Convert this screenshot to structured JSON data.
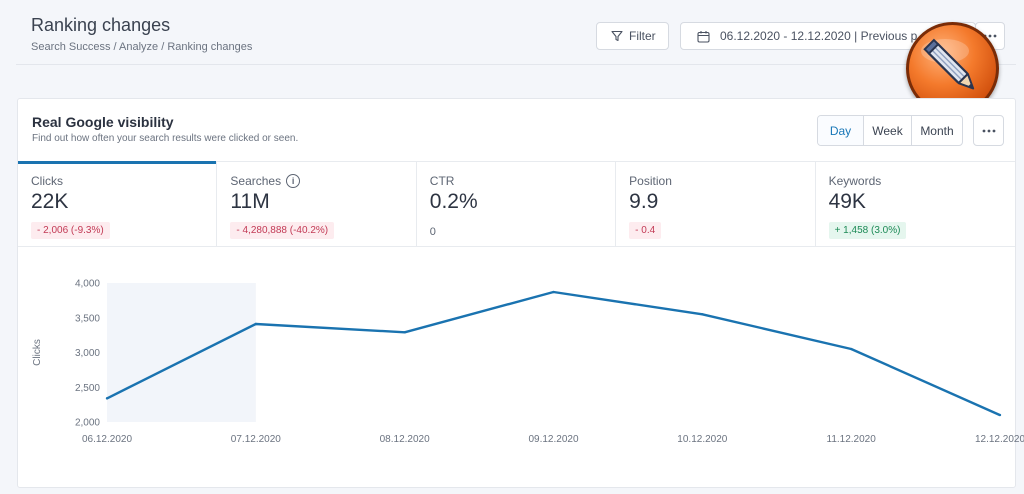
{
  "header": {
    "title": "Ranking changes",
    "breadcrumb": "Search Success / Analyze / Ranking changes",
    "filter_label": "Filter",
    "date_range": "06.12.2020 - 12.12.2020 | Previous p"
  },
  "card": {
    "title": "Real Google visibility",
    "subtitle": "Find out how often your search results were clicked or seen.",
    "periods": [
      "Day",
      "Week",
      "Month"
    ],
    "active_period": "Day"
  },
  "metrics": [
    {
      "label": "Clicks",
      "value": "22K",
      "delta": "- 2,006 (-9.3%)",
      "trend": "negative",
      "active": true
    },
    {
      "label": "Searches",
      "value": "11M",
      "delta": "- 4,280,888 (-40.2%)",
      "trend": "negative",
      "info": true
    },
    {
      "label": "CTR",
      "value": "0.2%",
      "sub": "0"
    },
    {
      "label": "Position",
      "value": "9.9",
      "delta": "- 0.4",
      "trend": "negative"
    },
    {
      "label": "Keywords",
      "value": "49K",
      "delta": "+ 1,458 (3.0%)",
      "trend": "positive"
    }
  ],
  "colors": {
    "accent": "#1a73b0",
    "negative": "#c23a55",
    "positive": "#1d8a56",
    "highlight_band": "#f2f5fa"
  },
  "chart_data": {
    "type": "line",
    "ylabel": "Clicks",
    "x": [
      "06.12.2020",
      "07.12.2020",
      "08.12.2020",
      "09.12.2020",
      "10.12.2020",
      "11.12.2020",
      "12.12.2020"
    ],
    "series": [
      {
        "values": [
          2340,
          3410,
          3290,
          3870,
          3550,
          3050,
          2100
        ]
      }
    ],
    "ylim": [
      2000,
      4000
    ],
    "yticks": [
      "4,000",
      "3,500",
      "3,000",
      "2,500",
      "2,000"
    ],
    "ytick_values": [
      4000,
      3500,
      3000,
      2500,
      2000
    ],
    "highlight_range": [
      "06.12.2020",
      "07.12.2020"
    ],
    "grid": false
  }
}
